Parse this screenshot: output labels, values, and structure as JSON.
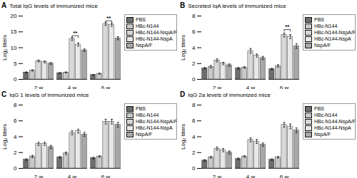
{
  "chart_data": [
    {
      "type": "bar",
      "panel_label": "A",
      "title": "Total IgG levels of immunized mice",
      "ylabel": "Log₂ titers",
      "categories": [
        "2 w",
        "4 w",
        "6 w"
      ],
      "series": [
        {
          "name": "PBS",
          "color": "#6e6e6e",
          "values": [
            2.2,
            2.0,
            1.4
          ],
          "errors": [
            0.15,
            0.15,
            0.1
          ]
        },
        {
          "name": "HBc-N144",
          "color": "#c8c8c8",
          "values": [
            2.8,
            2.2,
            1.8
          ],
          "errors": [
            0.2,
            0.15,
            0.15
          ]
        },
        {
          "name": "HBc-N144-NspA/F",
          "color": "#d8d8d8",
          "values": [
            5.8,
            12.8,
            17.5
          ],
          "errors": [
            0.3,
            0.5,
            0.5
          ]
        },
        {
          "name": "HBc-N144-NspA",
          "color": "#e8e8e8",
          "values": [
            5.5,
            11.0,
            17.2
          ],
          "errors": [
            0.3,
            0.5,
            0.5
          ]
        },
        {
          "name": "NspA/F",
          "color": "#a8a8a8",
          "values": [
            5.0,
            9.2,
            13.0
          ],
          "errors": [
            0.3,
            0.4,
            0.5
          ]
        }
      ],
      "ylim": [
        0,
        20
      ],
      "yticks": [
        0,
        5,
        10,
        15,
        20
      ],
      "grid": false,
      "legend": "right",
      "annotations": [
        {
          "category": "4 w",
          "series": [
            "HBc-N144-NspA/F",
            "HBc-N144-NspA"
          ],
          "y": 13.8,
          "text": "**"
        },
        {
          "category": "6 w",
          "series": [
            "HBc-N144-NspA/F",
            "HBc-N144-NspA"
          ],
          "y": 18.5,
          "text": "**"
        }
      ]
    },
    {
      "type": "bar",
      "panel_label": "B",
      "title": "Secreted IgA levels of immunized mice",
      "ylabel": "Log₂ titers",
      "categories": [
        "2 w",
        "4 w",
        "6 w"
      ],
      "series": [
        {
          "name": "PBS",
          "color": "#6e6e6e",
          "values": [
            1.4,
            1.4,
            1.3
          ],
          "errors": [
            0.1,
            0.1,
            0.1
          ]
        },
        {
          "name": "HBc-N144",
          "color": "#c8c8c8",
          "values": [
            1.6,
            1.5,
            1.7
          ],
          "errors": [
            0.15,
            0.1,
            0.15
          ]
        },
        {
          "name": "HBc-N144-NspA/F",
          "color": "#d8d8d8",
          "values": [
            2.4,
            3.6,
            5.6
          ],
          "errors": [
            0.2,
            0.3,
            0.25
          ]
        },
        {
          "name": "HBc-N144-NspA",
          "color": "#e8e8e8",
          "values": [
            2.0,
            3.0,
            5.4
          ],
          "errors": [
            0.15,
            0.2,
            0.25
          ]
        },
        {
          "name": "NspA/F",
          "color": "#a8a8a8",
          "values": [
            1.8,
            2.7,
            4.2
          ],
          "errors": [
            0.15,
            0.2,
            0.3
          ]
        }
      ],
      "ylim": [
        0,
        8
      ],
      "yticks": [
        0,
        2,
        4,
        6,
        8
      ],
      "grid": false,
      "legend": "right",
      "annotations": [
        {
          "category": "6 w",
          "series": [
            "HBc-N144-NspA/F",
            "HBc-N144-NspA"
          ],
          "y": 6.3,
          "text": "**"
        }
      ]
    },
    {
      "type": "bar",
      "panel_label": "C",
      "title": "IgG 1 levels of immunized mice",
      "ylabel": "Log₂ titers",
      "categories": [
        "2 w",
        "4 w",
        "6 w"
      ],
      "series": [
        {
          "name": "PBS",
          "color": "#6e6e6e",
          "values": [
            1.1,
            1.4,
            1.3
          ],
          "errors": [
            0.1,
            0.1,
            0.1
          ]
        },
        {
          "name": "HBc-N144",
          "color": "#c8c8c8",
          "values": [
            1.5,
            1.9,
            1.5
          ],
          "errors": [
            0.15,
            0.15,
            0.1
          ]
        },
        {
          "name": "HBc-N144-NspA/F",
          "color": "#d8d8d8",
          "values": [
            3.1,
            4.5,
            5.9
          ],
          "errors": [
            0.2,
            0.25,
            0.3
          ]
        },
        {
          "name": "HBc-N144-NspA",
          "color": "#e8e8e8",
          "values": [
            3.1,
            4.7,
            5.9
          ],
          "errors": [
            0.2,
            0.25,
            0.3
          ]
        },
        {
          "name": "NspA/F",
          "color": "#a8a8a8",
          "values": [
            2.7,
            4.3,
            5.5
          ],
          "errors": [
            0.2,
            0.25,
            0.3
          ]
        }
      ],
      "ylim": [
        0,
        8
      ],
      "yticks": [
        0,
        2,
        4,
        6,
        8
      ],
      "grid": false,
      "legend": "right"
    },
    {
      "type": "bar",
      "panel_label": "D",
      "title": "IgG 2a levels of immunized mice",
      "ylabel": "Log₂ titers",
      "categories": [
        "2 w",
        "4 w",
        "6 w"
      ],
      "series": [
        {
          "name": "PBS",
          "color": "#6e6e6e",
          "values": [
            1.0,
            1.2,
            1.1
          ],
          "errors": [
            0.1,
            0.1,
            0.1
          ]
        },
        {
          "name": "HBc-N144",
          "color": "#c8c8c8",
          "values": [
            1.4,
            1.5,
            1.4
          ],
          "errors": [
            0.1,
            0.1,
            0.1
          ]
        },
        {
          "name": "HBc-N144-NspA/F",
          "color": "#d8d8d8",
          "values": [
            2.5,
            3.6,
            5.5
          ],
          "errors": [
            0.2,
            0.25,
            0.3
          ]
        },
        {
          "name": "HBc-N144-NspA",
          "color": "#e8e8e8",
          "values": [
            2.3,
            3.4,
            5.3
          ],
          "errors": [
            0.2,
            0.25,
            0.3
          ]
        },
        {
          "name": "NspA/F",
          "color": "#a8a8a8",
          "values": [
            2.0,
            3.0,
            4.8
          ],
          "errors": [
            0.2,
            0.2,
            0.3
          ]
        }
      ],
      "ylim": [
        0,
        8
      ],
      "yticks": [
        0,
        2,
        4,
        6,
        8
      ],
      "grid": false,
      "legend": "right"
    }
  ]
}
